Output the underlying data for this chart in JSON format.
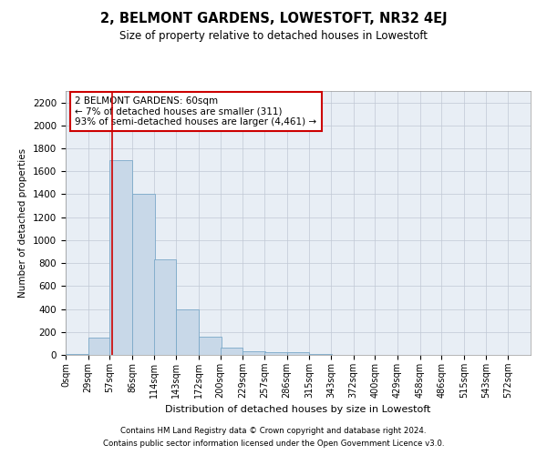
{
  "title": "2, BELMONT GARDENS, LOWESTOFT, NR32 4EJ",
  "subtitle": "Size of property relative to detached houses in Lowestoft",
  "xlabel": "Distribution of detached houses by size in Lowestoft",
  "ylabel": "Number of detached properties",
  "footnote1": "Contains HM Land Registry data © Crown copyright and database right 2024.",
  "footnote2": "Contains public sector information licensed under the Open Government Licence v3.0.",
  "bin_edges": [
    0,
    29,
    57,
    86,
    114,
    143,
    172,
    200,
    229,
    257,
    286,
    315,
    343,
    372,
    400,
    429,
    458,
    486,
    515,
    543,
    572
  ],
  "bar_heights": [
    10,
    150,
    1700,
    1400,
    830,
    395,
    160,
    60,
    30,
    20,
    20,
    5,
    0,
    0,
    0,
    0,
    0,
    0,
    0,
    0
  ],
  "bar_color": "#c8d8e8",
  "bar_edgecolor": "#7aa8c8",
  "property_size": 60,
  "vline_color": "#cc0000",
  "annotation_text": "2 BELMONT GARDENS: 60sqm\n← 7% of detached houses are smaller (311)\n93% of semi-detached houses are larger (4,461) →",
  "annotation_box_color": "#cc0000",
  "ylim": [
    0,
    2300
  ],
  "yticks": [
    0,
    200,
    400,
    600,
    800,
    1000,
    1200,
    1400,
    1600,
    1800,
    2000,
    2200
  ],
  "background_color": "#ffffff",
  "ax_facecolor": "#e8eef5",
  "grid_color": "#c0c8d4"
}
